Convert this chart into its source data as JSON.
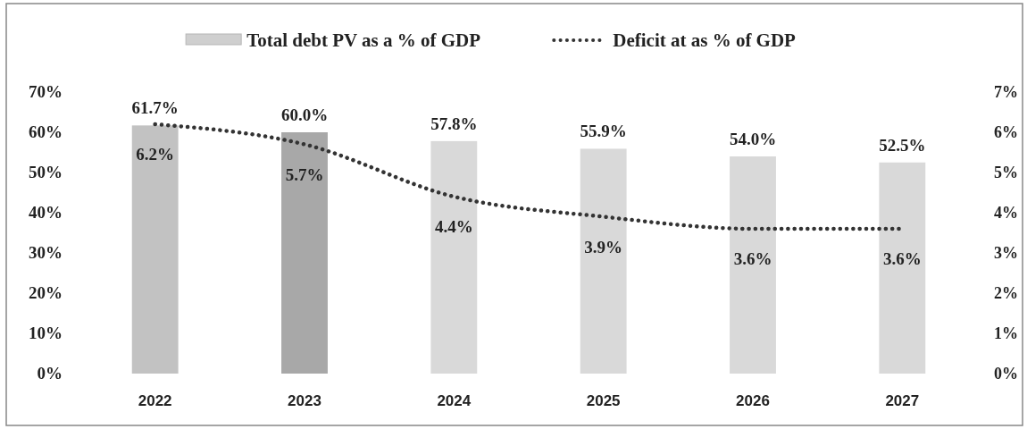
{
  "chart_data": {
    "type": "bar",
    "categories": [
      "2022",
      "2023",
      "2024",
      "2025",
      "2026",
      "2027"
    ],
    "series": [
      {
        "name": "Total debt PV as a % of GDP",
        "color": "#cfcfcf",
        "colors": [
          "#c2c2c2",
          "#a8a8a8",
          "#d9d9d9",
          "#d9d9d9",
          "#d9d9d9",
          "#d9d9d9"
        ],
        "values": [
          61.7,
          60.0,
          57.8,
          55.9,
          54.0,
          52.5
        ],
        "value_labels": [
          "61.7%",
          "60.0%",
          "57.8%",
          "55.9%",
          "54.0%",
          "52.5%"
        ]
      },
      {
        "name": "Deficit at as % of GDP",
        "type": "line",
        "axis": "y2",
        "color": "#333333",
        "line_style": "dotted",
        "values": [
          6.2,
          5.7,
          4.4,
          3.9,
          3.6,
          3.6
        ],
        "value_labels": [
          "6.2%",
          "5.7%",
          "4.4%",
          "3.9%",
          "3.6%",
          "3.6%"
        ]
      }
    ],
    "ylim": [
      0,
      70
    ],
    "yticks": [
      {
        "value": 0,
        "label": "0%"
      },
      {
        "value": 10,
        "label": "10%"
      },
      {
        "value": 20,
        "label": "20%"
      },
      {
        "value": 30,
        "label": "30%"
      },
      {
        "value": 40,
        "label": "40%"
      },
      {
        "value": 50,
        "label": "50%"
      },
      {
        "value": 60,
        "label": "60%"
      },
      {
        "value": 70,
        "label": "70%"
      }
    ],
    "y2lim": [
      0,
      7
    ],
    "y2ticks": [
      {
        "value": 0,
        "label": "0%"
      },
      {
        "value": 1,
        "label": "1%"
      },
      {
        "value": 2,
        "label": "2%"
      },
      {
        "value": 3,
        "label": "3%"
      },
      {
        "value": 4,
        "label": "4%"
      },
      {
        "value": 5,
        "label": "5%"
      },
      {
        "value": 6,
        "label": "6%"
      },
      {
        "value": 7,
        "label": "7%"
      }
    ],
    "legend": "top",
    "grid": false
  }
}
